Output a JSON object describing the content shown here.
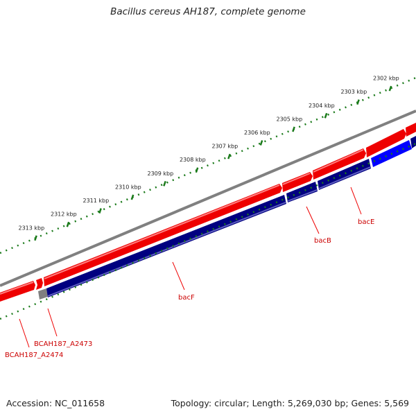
{
  "title": "Bacillus cereus AH187, complete genome",
  "accession": "Accession: NC_011658",
  "summary": "Topology: circular; Length: 5,269,030 bp; Genes: 5,569",
  "ticks": [
    {
      "label": "2302 kbp",
      "pos": 2302
    },
    {
      "label": "2303 kbp",
      "pos": 2303
    },
    {
      "label": "2304 kbp",
      "pos": 2304
    },
    {
      "label": "2305 kbp",
      "pos": 2305
    },
    {
      "label": "2306 kbp",
      "pos": 2306
    },
    {
      "label": "2307 kbp",
      "pos": 2307
    },
    {
      "label": "2308 kbp",
      "pos": 2308
    },
    {
      "label": "2309 kbp",
      "pos": 2309
    },
    {
      "label": "2310 kbp",
      "pos": 2310
    },
    {
      "label": "2311 kbp",
      "pos": 2311
    },
    {
      "label": "2312 kbp",
      "pos": 2312
    },
    {
      "label": "2313 kbp",
      "pos": 2313
    }
  ],
  "gene_labels": [
    "bacE",
    "bacB",
    "bacF",
    "BCAH187_A2473",
    "BCAH187_A2474"
  ],
  "colors": {
    "backbone": "#808080",
    "forward_feature": "#ff0000",
    "reverse_feature": "#000080",
    "reverse_highlight": "#0000ff",
    "ticks": "#1a7a1a",
    "labels": "#cc0000"
  }
}
